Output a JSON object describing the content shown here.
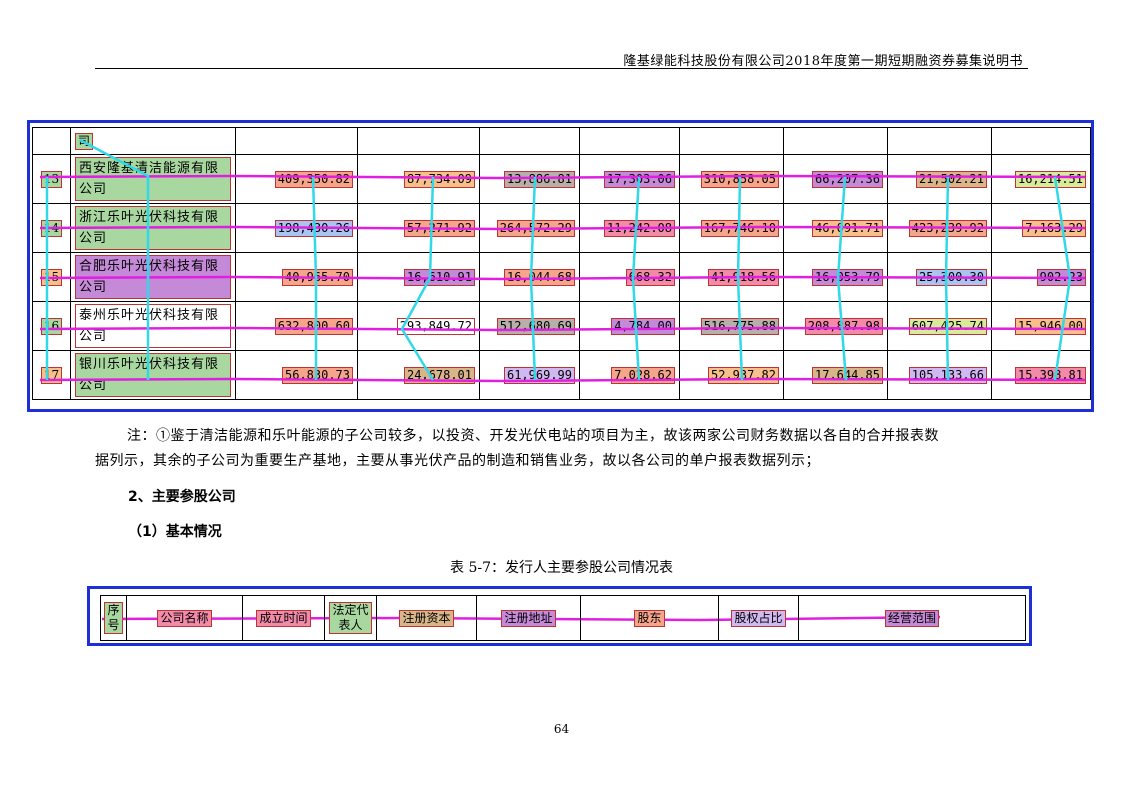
{
  "header": {
    "title": "隆基绿能科技股份有限公司2018年度第一期短期融资券募集说明书"
  },
  "table1": {
    "first_row_fragment": "司",
    "rows": [
      {
        "idx": "13",
        "name_line1": "西安隆基清洁能源有限",
        "name_line2": "公司",
        "values": [
          "409,350.82",
          "87,734.09",
          "13,886.81",
          "17,303.06",
          "310,858.05",
          "66,207.36",
          "21,502.21",
          "16,214.51"
        ]
      },
      {
        "idx": "14",
        "name_line1": "浙江乐叶光伏科技有限",
        "name_line2": "公司",
        "values": [
          "198,430.26",
          "57,271.92",
          "264,572.29",
          "11,242.08",
          "167,746.10",
          "46,091.71",
          "423,239.92",
          "7,163.29"
        ]
      },
      {
        "idx": "15",
        "name_line1": "合肥乐叶光伏科技有限",
        "name_line2": "公司",
        "values": [
          "40,965.70",
          "16,610.91",
          "16,044.68",
          "668.32",
          "41,918.56",
          "16,053.79",
          "25,300.30",
          "902.23"
        ]
      },
      {
        "idx": "16",
        "name_line1": "泰州乐叶光伏科技有限",
        "name_line2": "公司",
        "values": [
          "632,800.60",
          "293,849.72",
          "512,680.69",
          "4,784.00",
          "516,775.88",
          "208,887.98",
          "607,425.74",
          "15,946.00"
        ]
      },
      {
        "idx": "17",
        "name_line1": "银川乐叶光伏科技有限",
        "name_line2": "公司",
        "values": [
          "56,830.73",
          "24,678.01",
          "61,969.99",
          "7,028.62",
          "52,937.82",
          "17,644.85",
          "105,133.66",
          "15,398.81"
        ]
      }
    ]
  },
  "note": {
    "line1": "注：①鉴于清洁能源和乐叶能源的子公司较多，以投资、开发光伏电站的项目为主，故该两家公司财务数据以各自的合并报表数",
    "line2": "据列示，其余的子公司为重要生产基地，主要从事光伏产品的制造和销售业务，故以各公司的单户报表数据列示；"
  },
  "section2": {
    "heading": "2、主要参股公司"
  },
  "subsection1": {
    "heading": "（1）基本情况"
  },
  "table2": {
    "caption": "表 5-7：发行人主要参股公司情况表",
    "headers": {
      "seq_line1": "序",
      "seq_line2": "号",
      "company": "公司名称",
      "founded": "成立时间",
      "rep_line1": "法定代",
      "rep_line2": "表人",
      "capital": "注册资本",
      "address": "注册地址",
      "shareholder": "股东",
      "ratio": "股权占比",
      "scope": "经营范围"
    }
  },
  "page_number": "64",
  "colors": {
    "frame_blue": "#1f2fd6",
    "row_line_magenta": "#e020e0",
    "col_line_cyan": "#30d8e8"
  }
}
